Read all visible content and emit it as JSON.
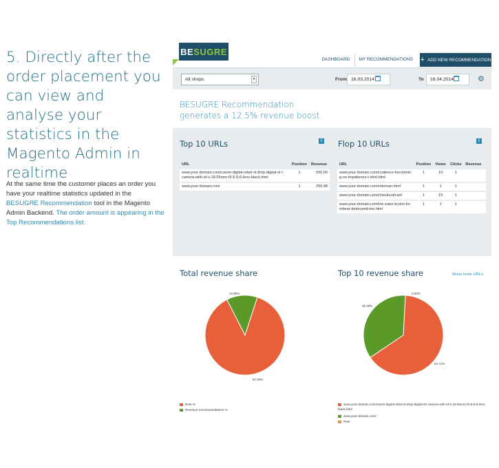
{
  "intro": {
    "title": "5. Directly after the order placement you can view and analyse your statistics in the Magento Admin in realtime",
    "body_part1": "At the same time the customer places an order you have your realtime statistics updated in the ",
    "body_link1": "BESUGRE Recommendation",
    "body_part2": " tool in the Magento Admin Backend. ",
    "body_link2": "The order amount is appearing in the Top Recommendations list."
  },
  "app": {
    "logo_part1": "BE",
    "logo_part2": "SUGRE",
    "nav": [
      "DASHBOARD",
      "MY RECOMMENDATIONS"
    ],
    "add_button": "ADD NEW RECOMMENDATION",
    "filters": {
      "shop": "All shops",
      "from_label": "From",
      "from_date": "16.03.2014",
      "to_label": "To",
      "to_date": "16.04.2014"
    },
    "headline_line1": "BESUGRE Recommendation",
    "headline_line2": "generates a 12.5% revenue boost.",
    "top10": {
      "title": "Top 10 URLs",
      "headers": [
        "URL",
        "Position",
        "Revenue"
      ],
      "rows": [
        [
          "www.your-domain.com/canon-digital-rebel-xt-8mp-digital-sl r-camera-with-ef-s-18-55mm-f3-5-5-6-lens-black.html",
          "1",
          "550.00"
        ],
        [
          "www.your-domain.com",
          "1",
          "299.98"
        ]
      ]
    },
    "flop10": {
      "title": "Flop 10 URLs",
      "headers": [
        "URL",
        "Position",
        "Views",
        "Clicks",
        "Revenue"
      ],
      "rows": [
        [
          "www.your-domain.com/coalesce-functionin g-on-impatience-t-shirt.html",
          "1",
          "10",
          "1",
          ""
        ],
        [
          "www.your-domain.com/ottoman.html",
          "1",
          "1",
          "1",
          ""
        ],
        [
          "www.your-domain.com/checkout/cart/",
          "1",
          "15",
          "1",
          ""
        ],
        [
          "www.your-domain.com/ink-eater-krylon-bo mbear-destroyed-tee.html",
          "1",
          "1",
          "1",
          ""
        ]
      ],
      "show_more": "Show more URLs"
    },
    "total_share_title": "Total revenue share",
    "top10_share_title": "Top 10 revenue share",
    "colors": {
      "orange": "#e8603a",
      "green": "#5b9a28",
      "navy": "#1f4f68",
      "accent": "#2b8aaf"
    }
  },
  "chart_data": [
    {
      "type": "pie",
      "title": "Total revenue share",
      "slices": [
        {
          "name": "Rest %",
          "value": 87.5,
          "label": "87.50%",
          "color": "#e8603a"
        },
        {
          "name": "Revenue recommendations %",
          "value": 12.5,
          "label": "12.50%",
          "color": "#5b9a28"
        }
      ]
    },
    {
      "type": "pie",
      "title": "Top 10 revenue share",
      "slices": [
        {
          "name": "www.your-domain.com/canon-digital-rebel-xt-8mp-digital-slr-camera-with-ef-s-18-55mm-f3-5-5-6-lens-black.html",
          "value": 64.71,
          "label": "64.71%",
          "color": "#e8603a"
        },
        {
          "name": "www.your-domain.com/",
          "value": 35.29,
          "label": "35.29%",
          "color": "#5b9a28"
        },
        {
          "name": "Rest",
          "value": 0.0,
          "label": "0.00%",
          "color": "#f0903a"
        }
      ]
    }
  ]
}
